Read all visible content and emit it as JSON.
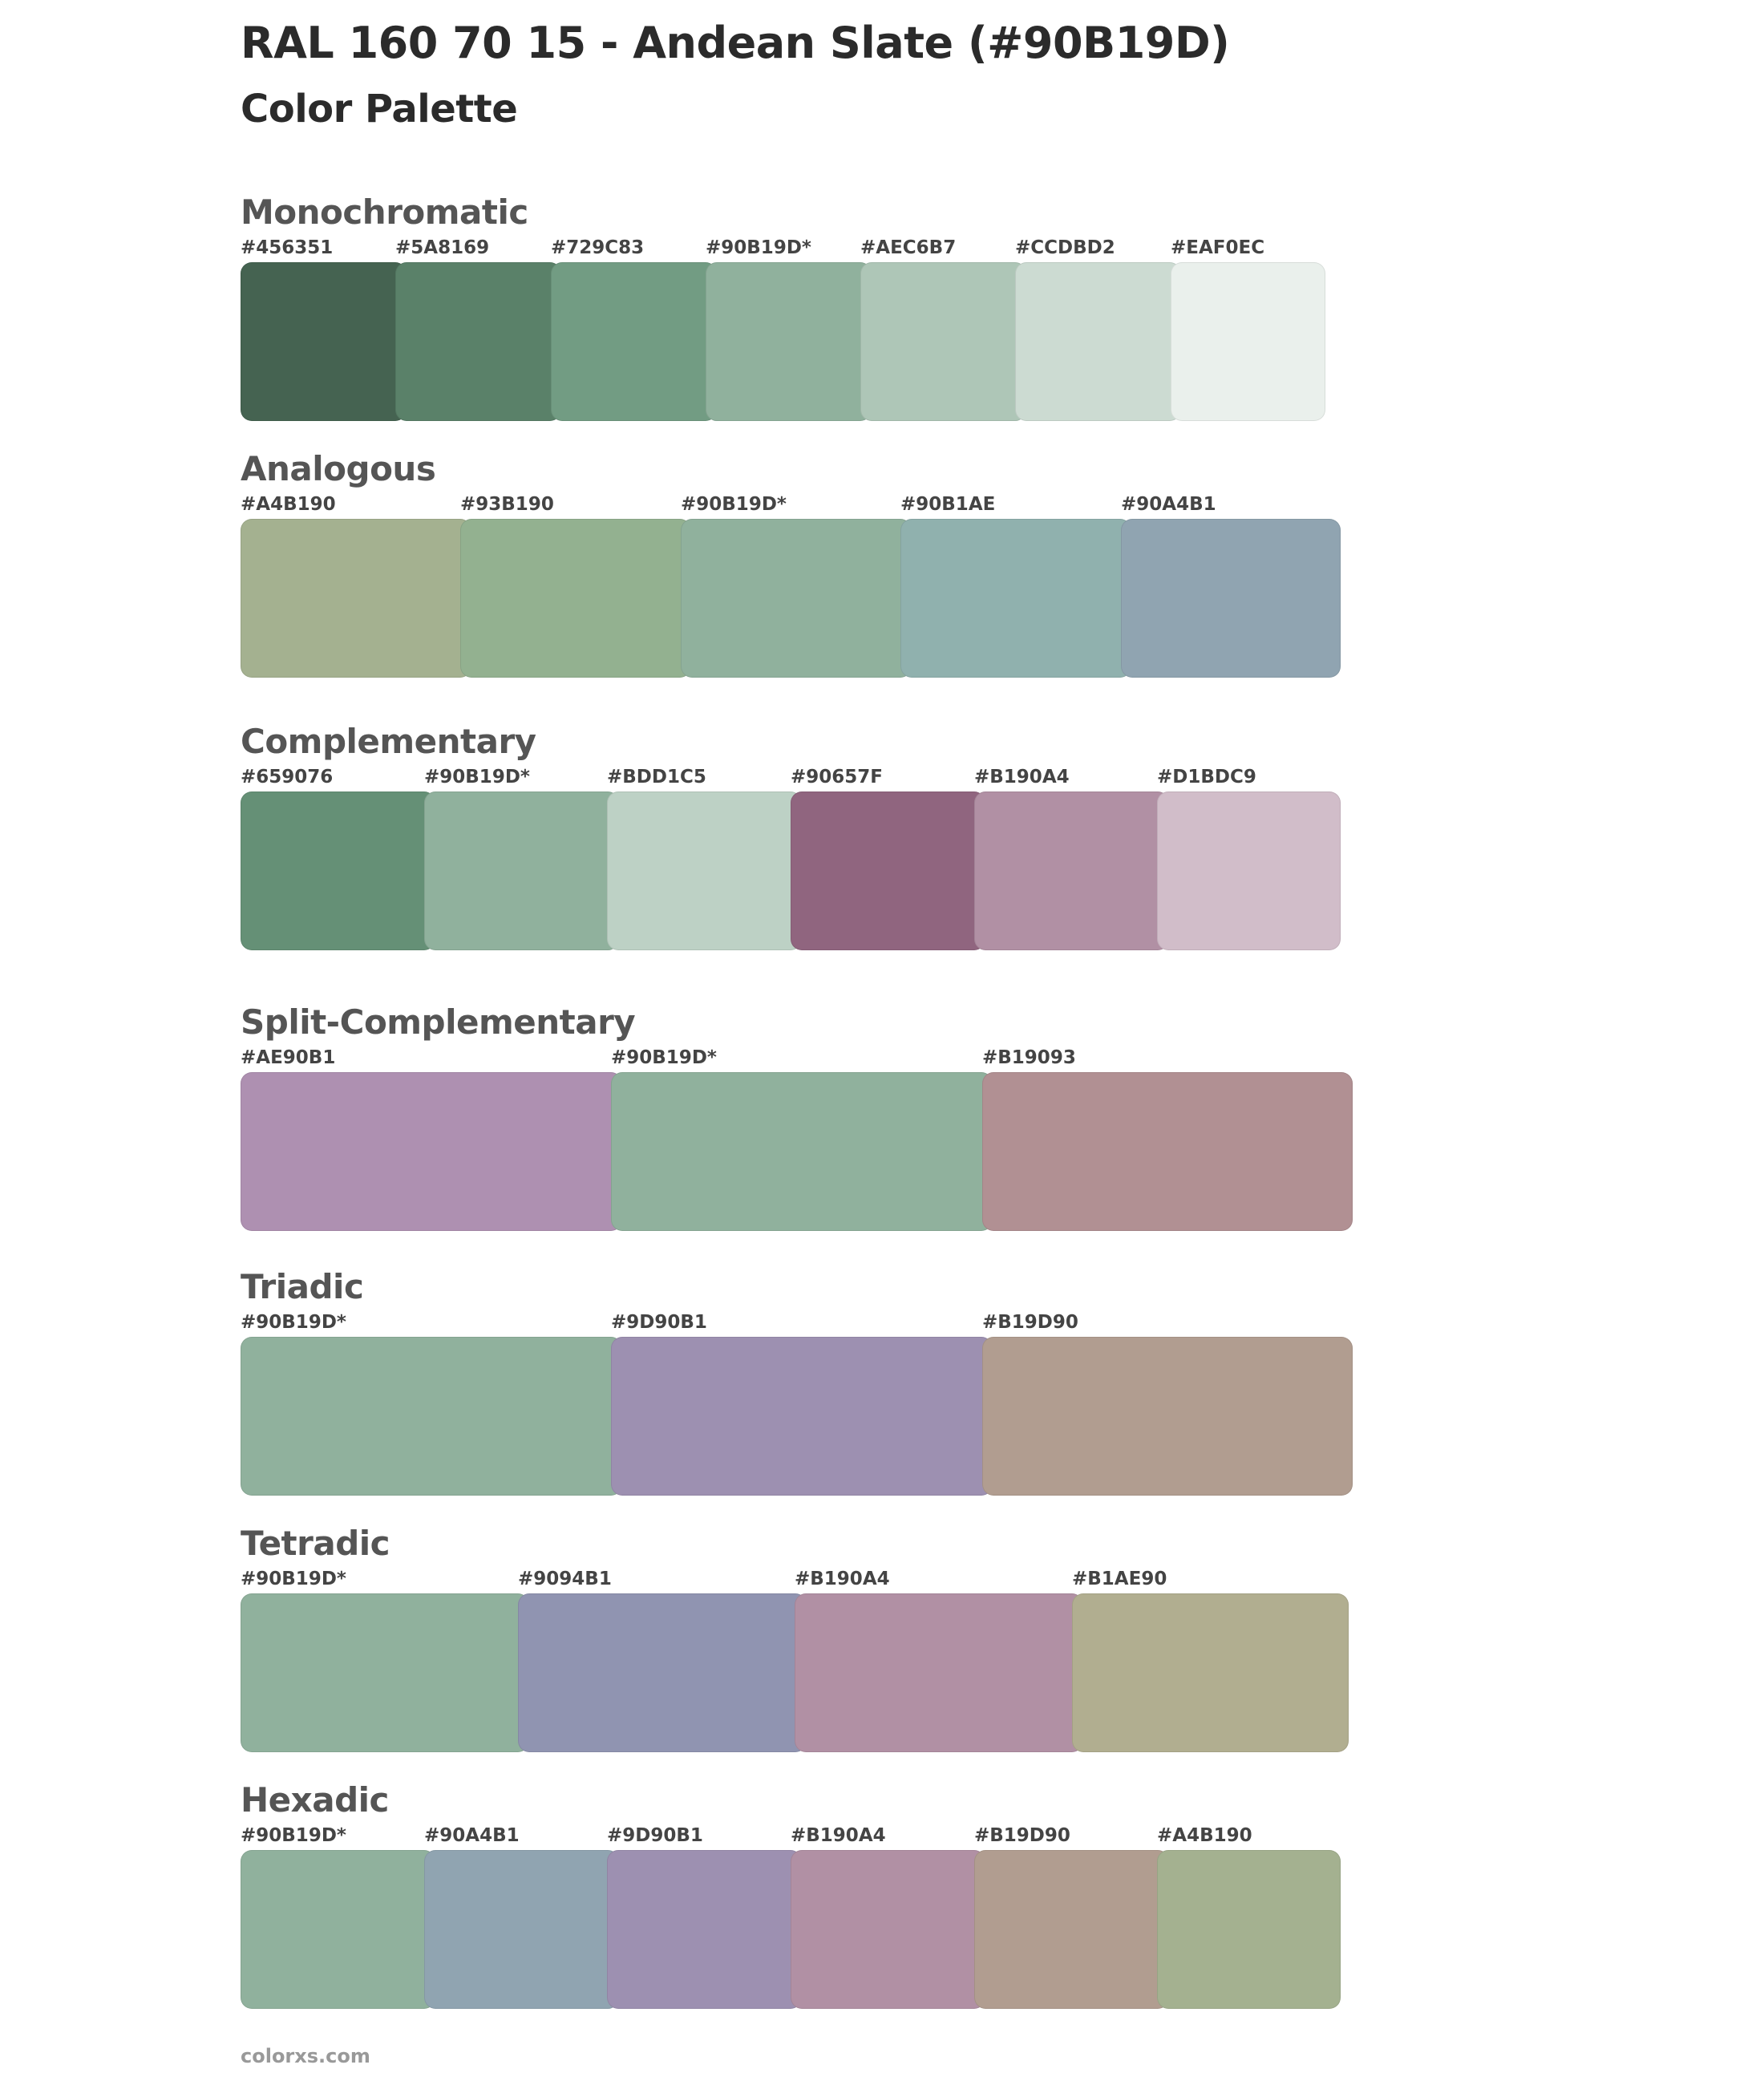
{
  "page": {
    "title": "RAL 160 70 15 - Andean Slate (#90B19D)",
    "subtitle": "Color Palette",
    "footer": "colorxs.com"
  },
  "palettes": [
    {
      "name": "Monochromatic",
      "colors": [
        {
          "label": "#456351",
          "hex": "#456351"
        },
        {
          "label": "#5A8169",
          "hex": "#5A8169"
        },
        {
          "label": "#729C83",
          "hex": "#729C83"
        },
        {
          "label": "#90B19D*",
          "hex": "#90B19D"
        },
        {
          "label": "#AEC6B7",
          "hex": "#AEC6B7"
        },
        {
          "label": "#CCDBD2",
          "hex": "#CCDBD2"
        },
        {
          "label": "#EAF0EC",
          "hex": "#EAF0EC"
        }
      ]
    },
    {
      "name": "Analogous",
      "colors": [
        {
          "label": "#A4B190",
          "hex": "#A4B190"
        },
        {
          "label": "#93B190",
          "hex": "#93B190"
        },
        {
          "label": "#90B19D*",
          "hex": "#90B19D"
        },
        {
          "label": "#90B1AE",
          "hex": "#90B1AE"
        },
        {
          "label": "#90A4B1",
          "hex": "#90A4B1"
        }
      ]
    },
    {
      "name": "Complementary",
      "colors": [
        {
          "label": "#659076",
          "hex": "#659076"
        },
        {
          "label": "#90B19D*",
          "hex": "#90B19D"
        },
        {
          "label": "#BDD1C5",
          "hex": "#BDD1C5"
        },
        {
          "label": "#90657F",
          "hex": "#90657F"
        },
        {
          "label": "#B190A4",
          "hex": "#B190A4"
        },
        {
          "label": "#D1BDC9",
          "hex": "#D1BDC9"
        }
      ]
    },
    {
      "name": "Split-Complementary",
      "colors": [
        {
          "label": "#AE90B1",
          "hex": "#AE90B1"
        },
        {
          "label": "#90B19D*",
          "hex": "#90B19D"
        },
        {
          "label": "#B19093",
          "hex": "#B19093"
        }
      ]
    },
    {
      "name": "Triadic",
      "colors": [
        {
          "label": "#90B19D*",
          "hex": "#90B19D"
        },
        {
          "label": "#9D90B1",
          "hex": "#9D90B1"
        },
        {
          "label": "#B19D90",
          "hex": "#B19D90"
        }
      ]
    },
    {
      "name": "Tetradic",
      "colors": [
        {
          "label": "#90B19D*",
          "hex": "#90B19D"
        },
        {
          "label": "#9094B1",
          "hex": "#9094B1"
        },
        {
          "label": "#B190A4",
          "hex": "#B190A4"
        },
        {
          "label": "#B1AE90",
          "hex": "#B1AE90"
        }
      ]
    },
    {
      "name": "Hexadic",
      "colors": [
        {
          "label": "#90B19D*",
          "hex": "#90B19D"
        },
        {
          "label": "#90A4B1",
          "hex": "#90A4B1"
        },
        {
          "label": "#9D90B1",
          "hex": "#9D90B1"
        },
        {
          "label": "#B190A4",
          "hex": "#B190A4"
        },
        {
          "label": "#B19D90",
          "hex": "#B19D90"
        },
        {
          "label": "#A4B190",
          "hex": "#A4B190"
        }
      ]
    }
  ]
}
